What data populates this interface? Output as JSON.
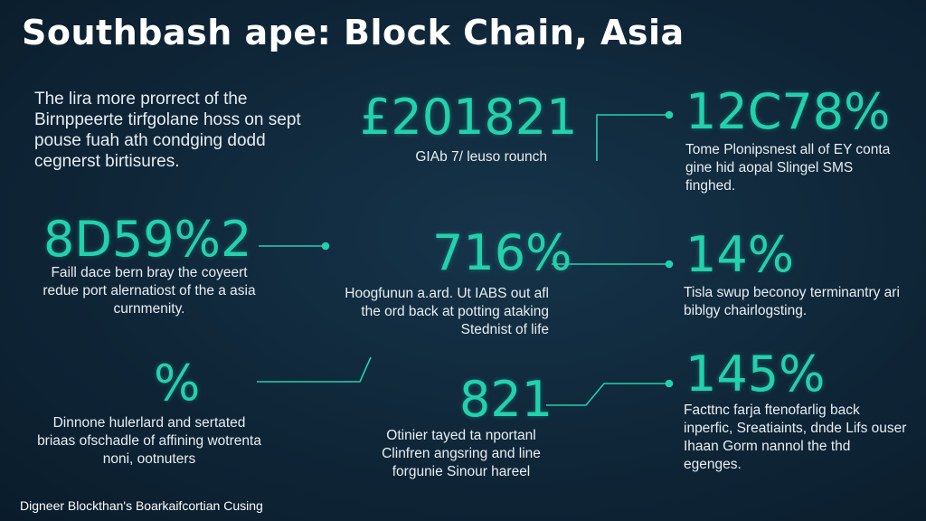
{
  "title": "Southbash ape: Block Chain, Asia",
  "intro": "The lira more prorrect of the Birnppeerte tirfgolane hoss on sept pouse fuah ath condging dodd cegnerst birtisures.",
  "stats": [
    {
      "id": "s1",
      "value": "£201821",
      "desc": "GIAb 7/ leuso rounch"
    },
    {
      "id": "s2",
      "value": "12C78%",
      "desc": "Tome Plonipsnest all of EY conta gine hid aopal Slingel SMS finghed."
    },
    {
      "id": "s3",
      "value": "8D59%2",
      "desc": "Faill dace bern bray the coyeert redue port alernatiost of the a asia curnmenity."
    },
    {
      "id": "s4",
      "value": "716%",
      "desc": "Hoogfunun a.ard. Ut IABS out afl the ord back at potting ataking Stednist of life"
    },
    {
      "id": "s5",
      "value": "14%",
      "desc": "Tisla swup beconoy terminantry ari biblgy chairlogsting."
    },
    {
      "id": "s6",
      "value": "%",
      "desc": "Dinnone hulerlard and sertated briaas ofschadle of affining wotrenta noni, ootnuters"
    },
    {
      "id": "s7",
      "value": "821",
      "desc": "Otinier tayed ta nportanl Clinfren angsring and line forgunie Sinour hareel"
    },
    {
      "id": "s8",
      "value": "145%",
      "desc": "Facttnc farja ftenofarlig back inperfic, Sreatiaints, dnde Lifs ouser Ihaan Gorm nannol the thd egenges."
    }
  ],
  "footer": "Digneer Blockthan's Boarkaifcortian Cusing",
  "colors": {
    "accent": "#22d1ad",
    "background": "#0f2638",
    "text": "#e8eef2"
  }
}
